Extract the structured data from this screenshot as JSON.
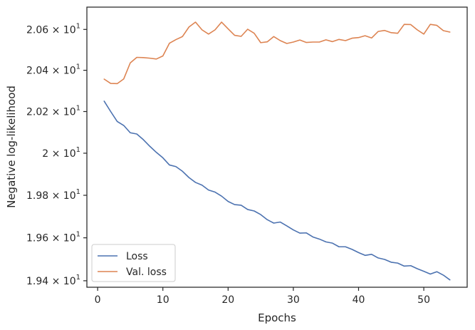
{
  "chart_data": {
    "type": "line",
    "title": "",
    "xlabel": "Epochs",
    "ylabel": "Negative log-likelihood",
    "yscale": "log",
    "xlim": [
      -1.65,
      56.65
    ],
    "ylim": [
      19.37,
      20.71
    ],
    "grid": false,
    "legend_position": "lower-left",
    "xticks": [
      0,
      10,
      20,
      30,
      40,
      50
    ],
    "xtick_labels": [
      "0",
      "10",
      "20",
      "30",
      "40",
      "50"
    ],
    "yticks": [
      19.4,
      19.6,
      19.8,
      20.0,
      20.2,
      20.4,
      20.6
    ],
    "ytick_labels": [
      {
        "mantissa": "1.94",
        "exponent": "1"
      },
      {
        "mantissa": "1.96",
        "exponent": "1"
      },
      {
        "mantissa": "1.98",
        "exponent": "1"
      },
      {
        "mantissa": "2",
        "exponent": "1"
      },
      {
        "mantissa": "2.02",
        "exponent": "1"
      },
      {
        "mantissa": "2.04",
        "exponent": "1"
      },
      {
        "mantissa": "2.06",
        "exponent": "1"
      }
    ],
    "x": [
      1,
      2,
      3,
      4,
      5,
      6,
      7,
      8,
      9,
      10,
      11,
      12,
      13,
      14,
      15,
      16,
      17,
      18,
      19,
      20,
      21,
      22,
      23,
      24,
      25,
      26,
      27,
      28,
      29,
      30,
      31,
      32,
      33,
      34,
      35,
      36,
      37,
      38,
      39,
      40,
      41,
      42,
      43,
      44,
      45,
      46,
      47,
      48,
      49,
      50,
      51,
      52,
      53,
      54
    ],
    "series": [
      {
        "name": "Loss",
        "color": "#4c72b0",
        "values": [
          20.25,
          20.2,
          20.152,
          20.133,
          20.098,
          20.092,
          20.065,
          20.033,
          20.004,
          19.978,
          19.944,
          19.936,
          19.914,
          19.884,
          19.861,
          19.848,
          19.825,
          19.815,
          19.796,
          19.771,
          19.756,
          19.753,
          19.733,
          19.726,
          19.709,
          19.685,
          19.669,
          19.674,
          19.656,
          19.637,
          19.622,
          19.623,
          19.604,
          19.594,
          19.581,
          19.575,
          19.558,
          19.558,
          19.546,
          19.531,
          19.518,
          19.523,
          19.506,
          19.499,
          19.486,
          19.482,
          19.468,
          19.47,
          19.456,
          19.444,
          19.431,
          19.442,
          19.426,
          19.404
        ]
      },
      {
        "name": "Val. loss",
        "color": "#dd8452",
        "values": [
          20.357,
          20.336,
          20.335,
          20.358,
          20.436,
          20.463,
          20.462,
          20.459,
          20.455,
          20.47,
          20.532,
          20.55,
          20.565,
          20.612,
          20.636,
          20.598,
          20.577,
          20.598,
          20.636,
          20.603,
          20.571,
          20.566,
          20.601,
          20.581,
          20.535,
          20.539,
          20.565,
          20.545,
          20.531,
          20.538,
          20.548,
          20.536,
          20.538,
          20.538,
          20.549,
          20.54,
          20.551,
          20.545,
          20.557,
          20.56,
          20.569,
          20.558,
          20.59,
          20.595,
          20.584,
          20.581,
          20.625,
          20.624,
          20.598,
          20.577,
          20.625,
          20.62,
          20.594,
          20.587
        ]
      }
    ]
  }
}
